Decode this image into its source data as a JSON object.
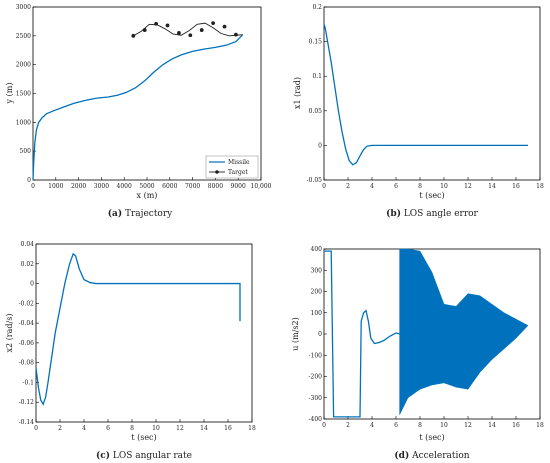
{
  "chart_data": [
    {
      "type": "line",
      "panel_label": "(a)",
      "caption": "Trajectory",
      "xlabel": "x (m)",
      "ylabel": "y (m)",
      "xlim": [
        0,
        10000
      ],
      "ylim": [
        0,
        3000
      ],
      "xticks": [
        0,
        1000,
        2000,
        3000,
        4000,
        5000,
        6000,
        7000,
        8000,
        9000,
        10000
      ],
      "xtick_labels": [
        "0",
        "1000",
        "2000",
        "3000",
        "4000",
        "5000",
        "6000",
        "7000",
        "8000",
        "9000",
        "10,000"
      ],
      "yticks": [
        0,
        500,
        1000,
        1500,
        2000,
        2500,
        3000
      ],
      "ytick_labels": [
        "0",
        "500",
        "1000",
        "1500",
        "2000",
        "2500",
        "3000"
      ],
      "legend": [
        "Missile",
        "Target"
      ],
      "legend_position": "bottom-right",
      "series": [
        {
          "name": "Missile",
          "color": "#0072BD",
          "x": [
            0,
            30,
            80,
            150,
            250,
            400,
            600,
            900,
            1300,
            1800,
            2300,
            2800,
            3300,
            3700,
            4100,
            4500,
            4900,
            5300,
            5700,
            6100,
            6500,
            7000,
            7500,
            8000,
            8500,
            8900,
            9200
          ],
          "y": [
            0,
            300,
            650,
            870,
            1000,
            1080,
            1150,
            1200,
            1260,
            1330,
            1380,
            1420,
            1440,
            1470,
            1520,
            1600,
            1720,
            1870,
            2000,
            2100,
            2170,
            2230,
            2270,
            2300,
            2340,
            2400,
            2520
          ]
        },
        {
          "name": "Target",
          "color": "#222222",
          "markers": true,
          "x": [
            4400,
            4750,
            5100,
            5450,
            5800,
            6150,
            6500,
            6850,
            7200,
            7550,
            7900,
            8250,
            8600,
            8950,
            9200
          ],
          "y": [
            2500,
            2580,
            2700,
            2690,
            2620,
            2530,
            2510,
            2590,
            2700,
            2720,
            2640,
            2540,
            2500,
            2510,
            2520
          ],
          "marker_x": [
            4400,
            4900,
            5400,
            5900,
            6400,
            6900,
            7400,
            7900,
            8400,
            8900
          ],
          "marker_y": [
            2500,
            2600,
            2710,
            2680,
            2550,
            2510,
            2600,
            2720,
            2660,
            2520
          ]
        }
      ]
    },
    {
      "type": "line",
      "panel_label": "(b)",
      "caption": "LOS angle error",
      "xlabel": "t (sec)",
      "ylabel": "x1 (rad)",
      "xlim": [
        0,
        18
      ],
      "ylim": [
        -0.05,
        0.2
      ],
      "xticks": [
        0,
        2,
        4,
        6,
        8,
        10,
        12,
        14,
        16,
        18
      ],
      "yticks": [
        -0.05,
        0,
        0.05,
        0.1,
        0.15,
        0.2
      ],
      "ytick_labels": [
        "-0.05",
        "0",
        "0.05",
        "0.1",
        "0.15",
        "0.2"
      ],
      "series": [
        {
          "x": [
            0,
            0.1,
            0.3,
            0.6,
            0.9,
            1.2,
            1.5,
            1.8,
            2.1,
            2.4,
            2.7,
            3.0,
            3.3,
            3.6,
            4.0,
            4.5,
            5,
            6,
            8,
            10,
            12,
            14,
            16,
            17
          ],
          "y": [
            0.175,
            0.17,
            0.15,
            0.12,
            0.085,
            0.05,
            0.02,
            -0.005,
            -0.022,
            -0.028,
            -0.025,
            -0.015,
            -0.006,
            -0.001,
            0.0,
            0.0,
            0,
            0,
            0,
            0,
            0,
            0,
            0,
            0
          ]
        }
      ]
    },
    {
      "type": "line",
      "panel_label": "(c)",
      "caption": "LOS angular rate",
      "xlabel": "t (sec)",
      "ylabel": "x2 (rad/s)",
      "xlim": [
        0,
        18
      ],
      "ylim": [
        -0.14,
        0.04
      ],
      "xticks": [
        0,
        2,
        4,
        6,
        8,
        10,
        12,
        14,
        16,
        18
      ],
      "yticks": [
        -0.14,
        -0.12,
        -0.1,
        -0.08,
        -0.06,
        -0.04,
        -0.02,
        0,
        0.02,
        0.04
      ],
      "ytick_labels": [
        "-0.14",
        "-0.12",
        "-0.1",
        "-0.08",
        "-0.06",
        "-0.04",
        "-0.02",
        "0",
        "0.02",
        "0.04"
      ],
      "series": [
        {
          "x": [
            0,
            0.2,
            0.4,
            0.6,
            0.8,
            1.0,
            1.3,
            1.6,
            2.0,
            2.4,
            2.8,
            3.1,
            3.3,
            3.6,
            4.0,
            4.5,
            5,
            6,
            8,
            10,
            12,
            14,
            16,
            16.95,
            17.0,
            17.0
          ],
          "y": [
            -0.085,
            -0.105,
            -0.118,
            -0.122,
            -0.115,
            -0.1,
            -0.075,
            -0.05,
            -0.025,
            0.0,
            0.02,
            0.03,
            0.028,
            0.015,
            0.004,
            0.001,
            0,
            0,
            0,
            0,
            0,
            0,
            0,
            0,
            0,
            -0.038
          ]
        }
      ]
    },
    {
      "type": "line",
      "panel_label": "(d)",
      "caption": "Acceleration",
      "xlabel": "t (sec)",
      "ylabel": "u (m/s2)",
      "xlim": [
        0,
        18
      ],
      "ylim": [
        -400,
        400
      ],
      "xticks": [
        0,
        2,
        4,
        6,
        8,
        10,
        12,
        14,
        16,
        18
      ],
      "yticks": [
        -400,
        -300,
        -200,
        -100,
        0,
        100,
        200,
        300,
        400
      ],
      "ytick_labels": [
        "-400",
        "-300",
        "-200",
        "-100",
        "0",
        "100",
        "200",
        "300",
        "400"
      ],
      "series": [
        {
          "x": [
            0,
            0.6,
            0.8,
            1.0,
            1.2,
            3.0,
            3.1,
            3.3,
            3.5,
            3.7,
            3.9,
            4.2,
            4.6,
            5.0,
            5.5,
            6.0,
            6.3
          ],
          "y": [
            390,
            390,
            -390,
            -390,
            -390,
            -390,
            60,
            100,
            110,
            60,
            -20,
            -45,
            -40,
            -30,
            -10,
            5,
            0
          ],
          "band_x": [
            6.3,
            7,
            8,
            9,
            10,
            11,
            12,
            13,
            14,
            15,
            16,
            17
          ],
          "band_upper": [
            400,
            400,
            390,
            290,
            140,
            130,
            190,
            180,
            140,
            100,
            70,
            40
          ],
          "band_lower": [
            -380,
            -300,
            -260,
            -240,
            -230,
            -250,
            -260,
            -180,
            -120,
            -70,
            -20,
            40
          ]
        }
      ]
    }
  ]
}
